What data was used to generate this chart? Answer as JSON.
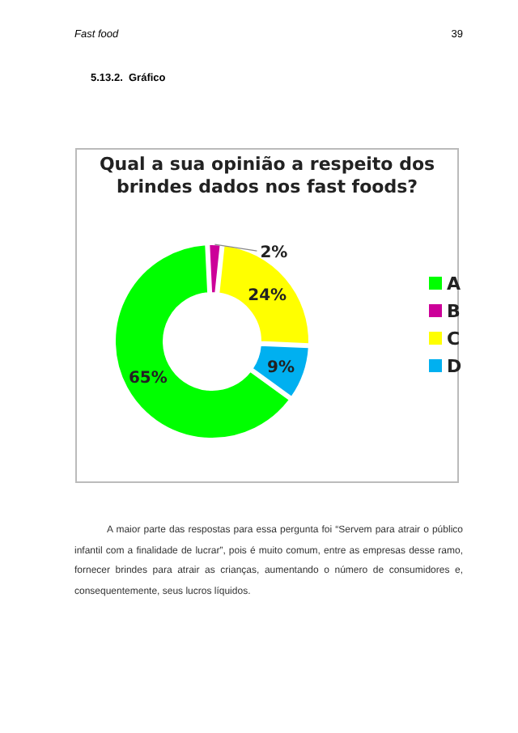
{
  "chart_data": {
    "type": "donut",
    "title": "Qual a sua opinião a respeito dos brindes dados nos fast foods?",
    "categories": [
      "A",
      "B",
      "C",
      "D"
    ],
    "values": [
      65,
      2,
      24,
      9
    ],
    "colors": [
      "#00ff00",
      "#cc0099",
      "#ffff00",
      "#00b0f0"
    ],
    "value_labels": [
      "65%",
      "2%",
      "24%",
      "9%"
    ],
    "legend": "right",
    "annotations": [
      "Fast food",
      "39",
      "5.13.2.  Gráfico",
      "A maior parte das respostas para essa pergunta foi “Servem para atrair o público infantil com a finalidade de lucrar”, pois é muito comum, entre as empresas desse ramo, fornecer brindes para atrair as crianças, aumentando o número de consumidores e, consequentemente, seus lucros líquidos."
    ]
  }
}
